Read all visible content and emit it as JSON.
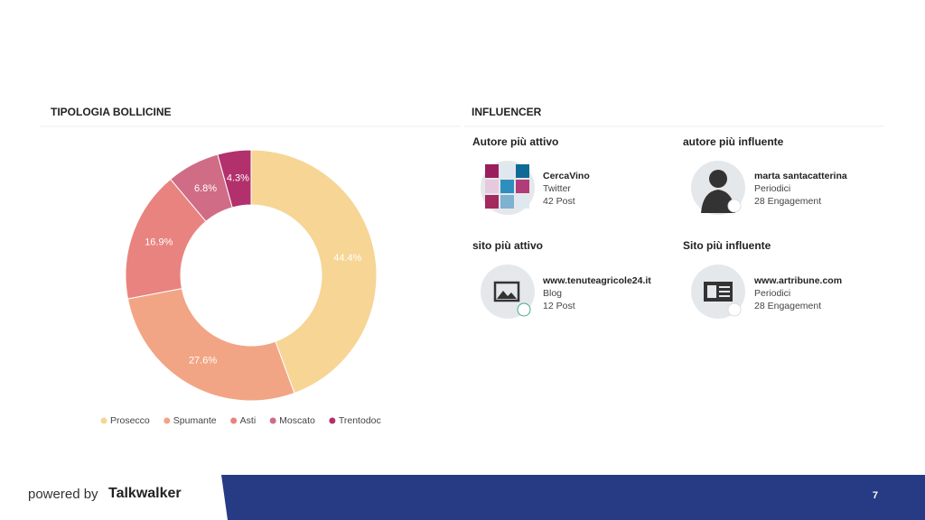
{
  "chart_data": {
    "type": "pie",
    "title": "TIPOLOGIA BOLLICINE",
    "donut": true,
    "categories": [
      "Prosecco",
      "Spumante",
      "Asti",
      "Moscato",
      "Trentodoc"
    ],
    "values": [
      44.4,
      27.6,
      16.9,
      6.8,
      4.3
    ],
    "value_labels": [
      "44.4%",
      "27.6%",
      "16.9%",
      "6.8%",
      "4.3%"
    ],
    "colors": [
      "#f6d595",
      "#f2a584",
      "#e9837f",
      "#d06c86",
      "#b2306b"
    ]
  },
  "influencer": {
    "title": "INFLUENCER",
    "cards": [
      {
        "heading": "Autore più attivo",
        "name": "CercaVino",
        "source": "Twitter",
        "stat": "42 Post"
      },
      {
        "heading": "autore più influente",
        "name": "marta santacatterina",
        "source": "Periodici",
        "stat": "28 Engagement"
      },
      {
        "heading": "sito più attivo",
        "name": "www.tenuteagricole24.it",
        "source": "Blog",
        "stat": "12 Post"
      },
      {
        "heading": "Sito più influente",
        "name": "www.artribune.com",
        "source": "Periodici",
        "stat": "28 Engagement"
      }
    ]
  },
  "footer": {
    "powered_by": "powered by",
    "brand": "Talkwalker",
    "page": 7
  }
}
